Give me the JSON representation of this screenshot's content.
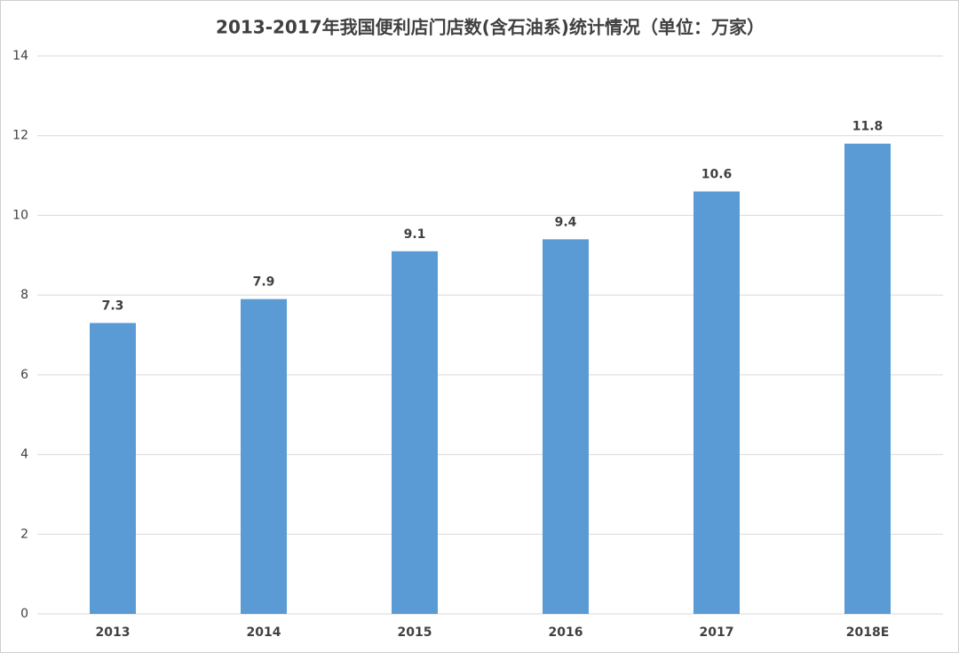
{
  "chart_data": {
    "type": "bar",
    "title": "2013-2017年我国便利店门店数(含石油系)统计情况（单位：万家）",
    "categories": [
      "2013",
      "2014",
      "2015",
      "2016",
      "2017",
      "2018E"
    ],
    "values": [
      7.3,
      7.9,
      9.1,
      9.4,
      10.6,
      11.8
    ],
    "color": "#5b9bd5",
    "ylim": [
      0,
      14
    ],
    "yticks": [
      0,
      2,
      4,
      6,
      8,
      10,
      12,
      14
    ],
    "grid": true,
    "data_labels": true
  }
}
